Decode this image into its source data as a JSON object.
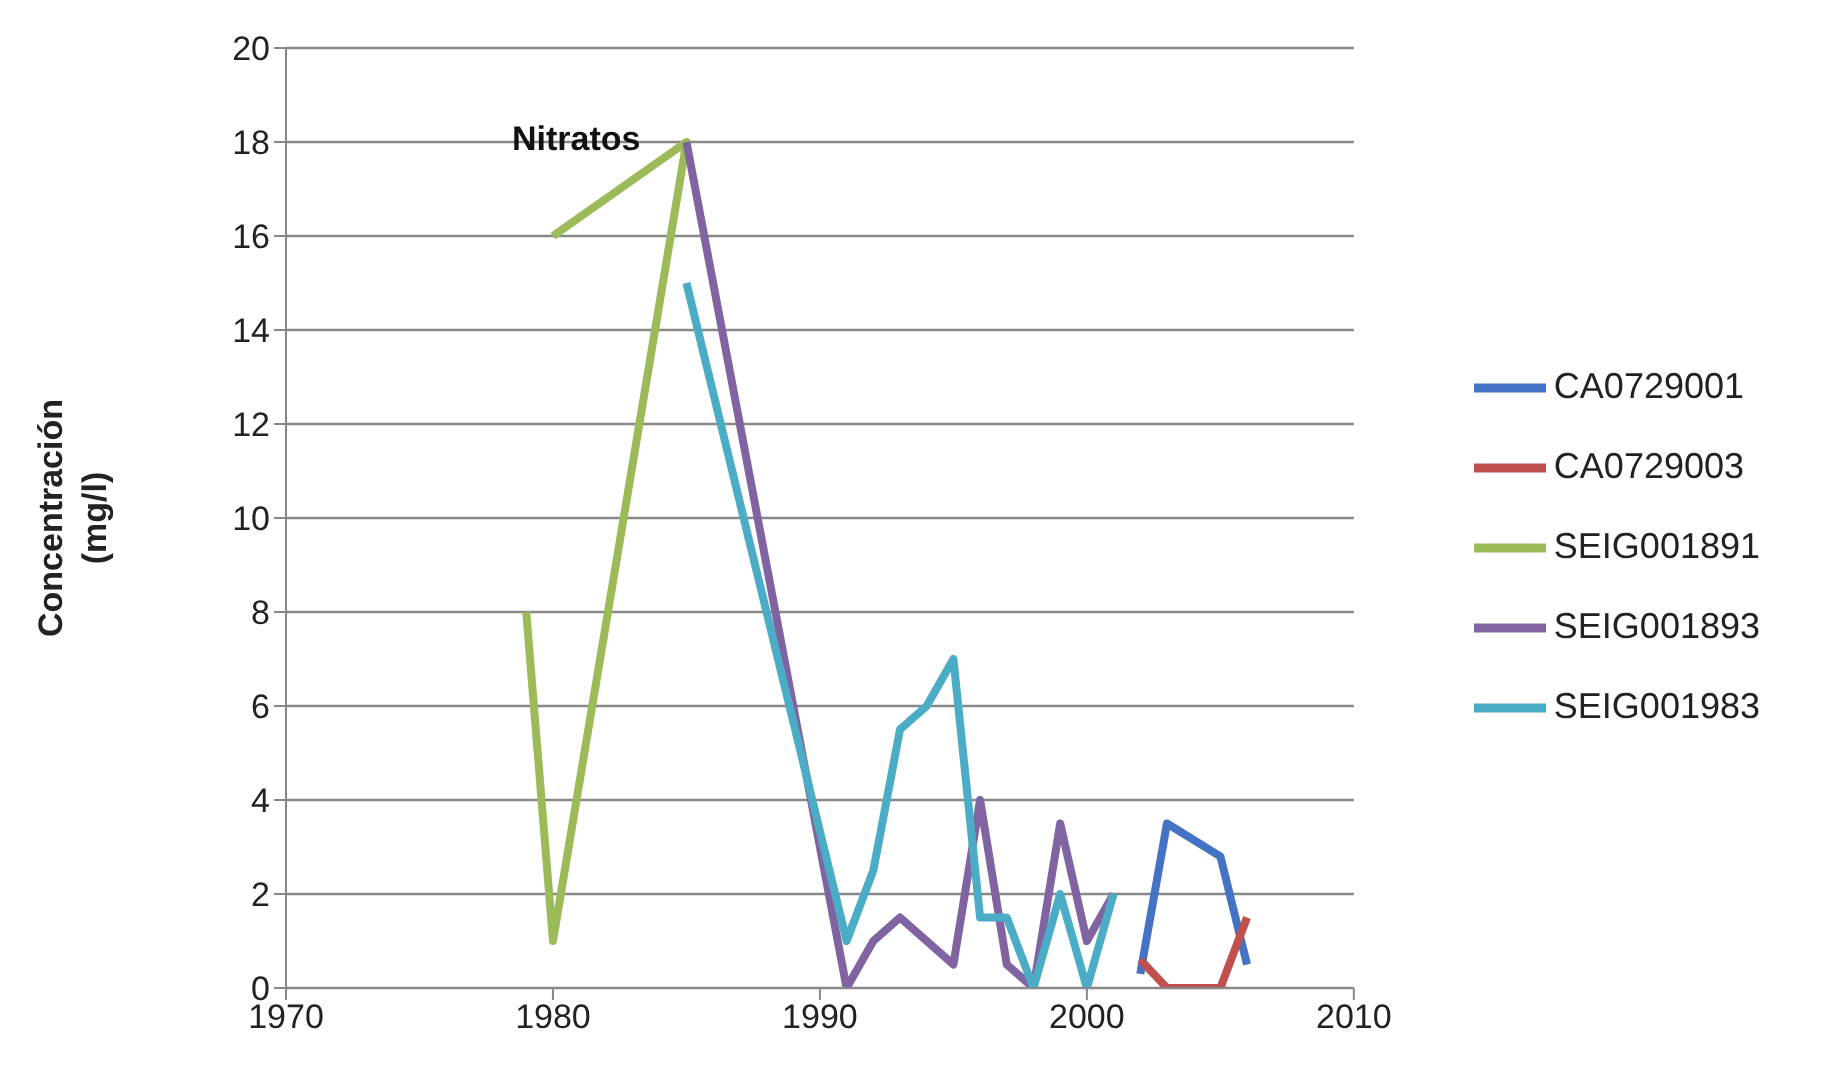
{
  "chart_data": {
    "type": "line",
    "title": "Nitratos",
    "ylabel": "Concentración (mg/l)",
    "xlim": [
      1970,
      2010
    ],
    "xticks": [
      1970,
      1980,
      1990,
      2000,
      2010
    ],
    "ylim": [
      0,
      20
    ],
    "yticks": [
      0,
      2,
      4,
      6,
      8,
      10,
      12,
      14,
      16,
      18,
      20
    ],
    "grid": "y",
    "legend": "right",
    "marker": "none",
    "series": [
      {
        "name": "CA0729001",
        "color": "#4472c4",
        "x": [
          2002,
          2003,
          2005,
          2006
        ],
        "values": [
          0.3,
          3.5,
          2.8,
          0.5
        ]
      },
      {
        "name": "CA0729003",
        "color": "#c0504d",
        "x": [
          2002,
          2003,
          2005,
          2006
        ],
        "values": [
          0.6,
          0,
          0,
          1.5
        ]
      },
      {
        "name": "SEIG001891",
        "color": "#9bbb59",
        "x": [
          1979,
          1980,
          1985,
          1980
        ],
        "values": [
          8,
          1,
          18,
          16
        ]
      },
      {
        "name": "SEIG001893",
        "color": "#8064a2",
        "x": [
          1985,
          1991,
          1992,
          1993,
          1995,
          1996,
          1997,
          1998,
          1999,
          2000,
          2001
        ],
        "values": [
          18,
          0,
          1,
          1.5,
          0.5,
          4,
          0.5,
          0,
          3.5,
          1,
          2
        ]
      },
      {
        "name": "SEIG001983",
        "color": "#4bacc6",
        "x": [
          1985,
          1991,
          1992,
          1993,
          1994,
          1995,
          1996,
          1997,
          1998,
          1999,
          2000,
          2001
        ],
        "values": [
          15,
          1,
          2.5,
          5.5,
          6,
          7,
          1.5,
          1.5,
          0,
          2,
          0,
          2
        ]
      }
    ]
  }
}
